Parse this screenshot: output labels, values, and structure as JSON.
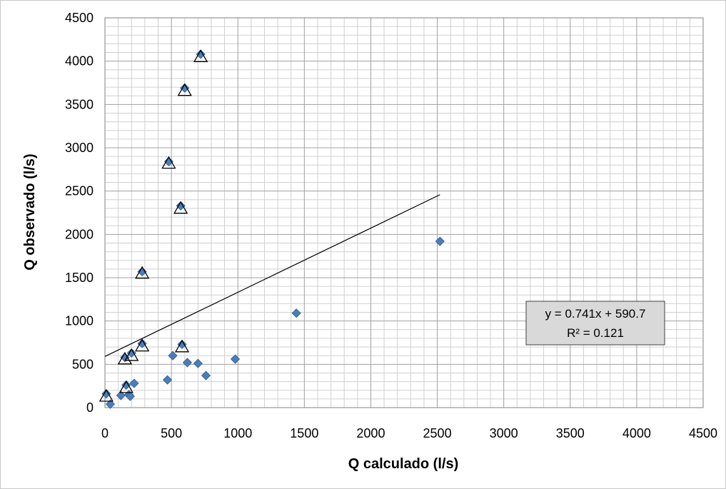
{
  "chart_data": {
    "type": "scatter",
    "xlabel": "Q calculado (l/s)",
    "ylabel": "Q observado (l/s)",
    "xlim": [
      0,
      4500
    ],
    "ylim": [
      0,
      4500
    ],
    "x_ticks": [
      "0",
      "500",
      "1000",
      "1500",
      "2000",
      "2500",
      "3000",
      "3500",
      "4000",
      "4500"
    ],
    "y_ticks": [
      "0",
      "500",
      "1000",
      "1500",
      "2000",
      "2500",
      "3000",
      "3500",
      "4000",
      "4500"
    ],
    "grid": {
      "major": true,
      "minor": true
    },
    "series": [
      {
        "marker": "diamond",
        "color": "#4a7ebb",
        "points": [
          [
            10,
            160
          ],
          [
            40,
            40
          ],
          [
            120,
            140
          ],
          [
            150,
            580
          ],
          [
            160,
            260
          ],
          [
            180,
            150
          ],
          [
            190,
            130
          ],
          [
            200,
            630
          ],
          [
            220,
            280
          ],
          [
            280,
            1570
          ],
          [
            280,
            740
          ],
          [
            470,
            320
          ],
          [
            480,
            2840
          ],
          [
            510,
            600
          ],
          [
            570,
            2330
          ],
          [
            580,
            730
          ],
          [
            600,
            3690
          ],
          [
            620,
            520
          ],
          [
            700,
            510
          ],
          [
            720,
            4080
          ],
          [
            760,
            370
          ],
          [
            980,
            560
          ],
          [
            1440,
            1090
          ],
          [
            2520,
            1920
          ]
        ]
      },
      {
        "marker": "triangle-open",
        "color": "#000000",
        "points": [
          [
            10,
            130
          ],
          [
            150,
            560
          ],
          [
            160,
            230
          ],
          [
            200,
            600
          ],
          [
            280,
            1550
          ],
          [
            280,
            710
          ],
          [
            480,
            2820
          ],
          [
            570,
            2300
          ],
          [
            580,
            700
          ],
          [
            600,
            3660
          ],
          [
            720,
            4050
          ]
        ]
      }
    ],
    "trendline": {
      "slope": 0.741,
      "intercept": 590.7,
      "x_range": [
        0,
        2520
      ],
      "color": "#000000"
    },
    "equation": {
      "line1": "y = 0.741x + 590.7",
      "line2": "R² = 0.121"
    }
  }
}
